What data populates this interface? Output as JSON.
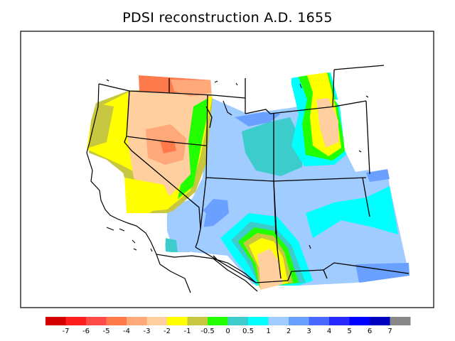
{
  "title": "PDSI reconstruction A.D. 1655",
  "legend": {
    "colors": [
      "#d40000",
      "#ff1e1e",
      "#ff4a4a",
      "#ff7a4a",
      "#ffa87a",
      "#ffcfa0",
      "#ffff00",
      "#c8c840",
      "#22ff00",
      "#3ccccc",
      "#00ffff",
      "#a0ccff",
      "#6aa0ff",
      "#4868ff",
      "#2828ff",
      "#0000ff",
      "#0000c0",
      "#888888"
    ],
    "labels": [
      "-7",
      "-6",
      "-5",
      "-4",
      "-3",
      "-2",
      "-1",
      "-0.5",
      "0",
      "0.5",
      "1",
      "2",
      "3",
      "4",
      "5",
      "6",
      "7"
    ]
  }
}
